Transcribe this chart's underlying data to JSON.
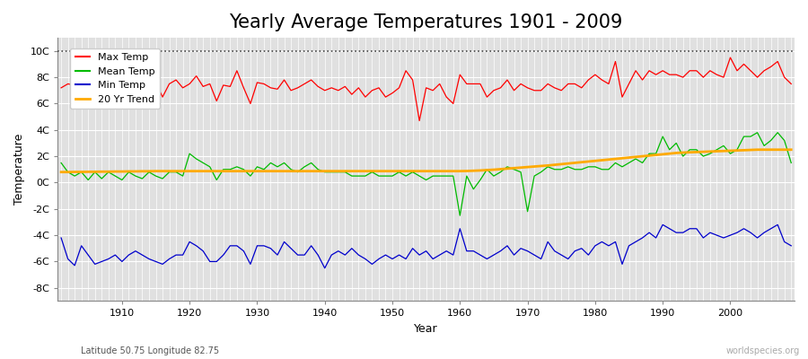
{
  "title": "Yearly Average Temperatures 1901 - 2009",
  "xlabel": "Year",
  "ylabel": "Temperature",
  "subtitle_left": "Latitude 50.75 Longitude 82.75",
  "subtitle_right": "worldspecies.org",
  "years": [
    1901,
    1902,
    1903,
    1904,
    1905,
    1906,
    1907,
    1908,
    1909,
    1910,
    1911,
    1912,
    1913,
    1914,
    1915,
    1916,
    1917,
    1918,
    1919,
    1920,
    1921,
    1922,
    1923,
    1924,
    1925,
    1926,
    1927,
    1928,
    1929,
    1930,
    1931,
    1932,
    1933,
    1934,
    1935,
    1936,
    1937,
    1938,
    1939,
    1940,
    1941,
    1942,
    1943,
    1944,
    1945,
    1946,
    1947,
    1948,
    1949,
    1950,
    1951,
    1952,
    1953,
    1954,
    1955,
    1956,
    1957,
    1958,
    1959,
    1960,
    1961,
    1962,
    1963,
    1964,
    1965,
    1966,
    1967,
    1968,
    1969,
    1970,
    1971,
    1972,
    1973,
    1974,
    1975,
    1976,
    1977,
    1978,
    1979,
    1980,
    1981,
    1982,
    1983,
    1984,
    1985,
    1986,
    1987,
    1988,
    1989,
    1990,
    1991,
    1992,
    1993,
    1994,
    1995,
    1996,
    1997,
    1998,
    1999,
    2000,
    2001,
    2002,
    2003,
    2004,
    2005,
    2006,
    2007,
    2008,
    2009
  ],
  "max_temp": [
    7.2,
    7.5,
    7.4,
    6.3,
    6.4,
    7.8,
    6.8,
    7.3,
    7.0,
    5.8,
    7.2,
    7.5,
    6.8,
    7.2,
    7.6,
    6.5,
    7.5,
    7.8,
    7.2,
    7.5,
    8.1,
    7.3,
    7.5,
    6.2,
    7.4,
    7.3,
    8.5,
    7.2,
    6.0,
    7.6,
    7.5,
    7.2,
    7.1,
    7.8,
    7.0,
    7.2,
    7.5,
    7.8,
    7.3,
    7.0,
    7.2,
    7.0,
    7.3,
    6.7,
    7.2,
    6.5,
    7.0,
    7.2,
    6.5,
    6.8,
    7.2,
    8.5,
    7.8,
    4.7,
    7.2,
    7.0,
    7.5,
    6.5,
    6.0,
    8.2,
    7.5,
    7.5,
    7.5,
    6.5,
    7.0,
    7.2,
    7.8,
    7.0,
    7.5,
    7.2,
    7.0,
    7.0,
    7.5,
    7.2,
    7.0,
    7.5,
    7.5,
    7.2,
    7.8,
    8.2,
    7.8,
    7.5,
    9.2,
    6.5,
    7.5,
    8.5,
    7.8,
    8.5,
    8.2,
    8.5,
    8.2,
    8.2,
    8.0,
    8.5,
    8.5,
    8.0,
    8.5,
    8.2,
    8.0,
    9.5,
    8.5,
    9.0,
    8.5,
    8.0,
    8.5,
    8.8,
    9.2,
    8.0,
    7.5
  ],
  "mean_temp": [
    1.5,
    0.8,
    0.5,
    0.8,
    0.2,
    0.8,
    0.3,
    0.8,
    0.5,
    0.2,
    0.8,
    0.5,
    0.3,
    0.8,
    0.5,
    0.3,
    0.8,
    0.8,
    0.5,
    2.2,
    1.8,
    1.5,
    1.2,
    0.2,
    1.0,
    1.0,
    1.2,
    1.0,
    0.5,
    1.2,
    1.0,
    1.5,
    1.2,
    1.5,
    1.0,
    0.8,
    1.2,
    1.5,
    1.0,
    0.8,
    0.8,
    0.8,
    0.8,
    0.5,
    0.5,
    0.5,
    0.8,
    0.5,
    0.5,
    0.5,
    0.8,
    0.5,
    0.8,
    0.5,
    0.2,
    0.5,
    0.5,
    0.5,
    0.5,
    -2.5,
    0.5,
    -0.5,
    0.2,
    1.0,
    0.5,
    0.8,
    1.2,
    1.0,
    0.8,
    -2.2,
    0.5,
    0.8,
    1.2,
    1.0,
    1.0,
    1.2,
    1.0,
    1.0,
    1.2,
    1.2,
    1.0,
    1.0,
    1.5,
    1.2,
    1.5,
    1.8,
    1.5,
    2.2,
    2.2,
    3.5,
    2.5,
    3.0,
    2.0,
    2.5,
    2.5,
    2.0,
    2.2,
    2.5,
    2.8,
    2.2,
    2.5,
    3.5,
    3.5,
    3.8,
    2.8,
    3.2,
    3.8,
    3.2,
    1.5
  ],
  "min_temp": [
    -4.2,
    -5.8,
    -6.3,
    -4.8,
    -5.5,
    -6.2,
    -6.0,
    -5.8,
    -5.5,
    -6.0,
    -5.5,
    -5.2,
    -5.5,
    -5.8,
    -6.0,
    -6.2,
    -5.8,
    -5.5,
    -5.5,
    -4.5,
    -4.8,
    -5.2,
    -6.0,
    -6.0,
    -5.5,
    -4.8,
    -4.8,
    -5.2,
    -6.2,
    -4.8,
    -4.8,
    -5.0,
    -5.5,
    -4.5,
    -5.0,
    -5.5,
    -5.5,
    -4.8,
    -5.5,
    -6.5,
    -5.5,
    -5.2,
    -5.5,
    -5.0,
    -5.5,
    -5.8,
    -6.2,
    -5.8,
    -5.5,
    -5.8,
    -5.5,
    -5.8,
    -5.0,
    -5.5,
    -5.2,
    -5.8,
    -5.5,
    -5.2,
    -5.5,
    -3.5,
    -5.2,
    -5.2,
    -5.5,
    -5.8,
    -5.5,
    -5.2,
    -4.8,
    -5.5,
    -5.0,
    -5.2,
    -5.5,
    -5.8,
    -4.5,
    -5.2,
    -5.5,
    -5.8,
    -5.2,
    -5.0,
    -5.5,
    -4.8,
    -4.5,
    -4.8,
    -4.5,
    -6.2,
    -4.8,
    -4.5,
    -4.2,
    -3.8,
    -4.2,
    -3.2,
    -3.5,
    -3.8,
    -3.8,
    -3.5,
    -3.5,
    -4.2,
    -3.8,
    -4.0,
    -4.2,
    -4.0,
    -3.8,
    -3.5,
    -3.8,
    -4.2,
    -3.8,
    -3.5,
    -3.2,
    -4.5,
    -4.8
  ],
  "trend": [
    0.8,
    0.8,
    0.81,
    0.81,
    0.82,
    0.82,
    0.83,
    0.83,
    0.84,
    0.84,
    0.85,
    0.85,
    0.86,
    0.86,
    0.87,
    0.87,
    0.87,
    0.87,
    0.87,
    0.87,
    0.87,
    0.87,
    0.87,
    0.87,
    0.87,
    0.87,
    0.87,
    0.87,
    0.87,
    0.87,
    0.87,
    0.87,
    0.87,
    0.87,
    0.87,
    0.87,
    0.87,
    0.87,
    0.87,
    0.87,
    0.87,
    0.87,
    0.87,
    0.87,
    0.87,
    0.87,
    0.87,
    0.87,
    0.87,
    0.87,
    0.87,
    0.87,
    0.87,
    0.87,
    0.87,
    0.87,
    0.87,
    0.87,
    0.87,
    0.87,
    0.88,
    0.9,
    0.92,
    0.95,
    0.98,
    1.02,
    1.06,
    1.1,
    1.14,
    1.18,
    1.22,
    1.26,
    1.3,
    1.35,
    1.4,
    1.45,
    1.5,
    1.55,
    1.6,
    1.65,
    1.7,
    1.75,
    1.8,
    1.85,
    1.9,
    1.95,
    2.0,
    2.05,
    2.1,
    2.15,
    2.2,
    2.25,
    2.28,
    2.3,
    2.32,
    2.34,
    2.36,
    2.38,
    2.4,
    2.42,
    2.44,
    2.46,
    2.48,
    2.5,
    2.5,
    2.5,
    2.5,
    2.5,
    2.5
  ],
  "max_color": "#ff0000",
  "mean_color": "#00bb00",
  "min_color": "#0000cc",
  "trend_color": "#ffaa00",
  "bg_color": "#ffffff",
  "plot_bg_color": "#e0e0e0",
  "grid_color": "#ffffff",
  "ylim": [
    -9,
    11
  ],
  "yticks": [
    -8,
    -6,
    -4,
    -2,
    0,
    2,
    4,
    6,
    8,
    10
  ],
  "ytick_labels": [
    "-8C",
    "-6C",
    "-4C",
    "-2C",
    "0C",
    "2C",
    "4C",
    "6C",
    "8C",
    "10C"
  ],
  "xticks": [
    1910,
    1920,
    1930,
    1940,
    1950,
    1960,
    1970,
    1980,
    1990,
    2000
  ],
  "dotted_line_y": 10,
  "title_fontsize": 15,
  "legend_labels": [
    "Max Temp",
    "Mean Temp",
    "Min Temp",
    "20 Yr Trend"
  ]
}
